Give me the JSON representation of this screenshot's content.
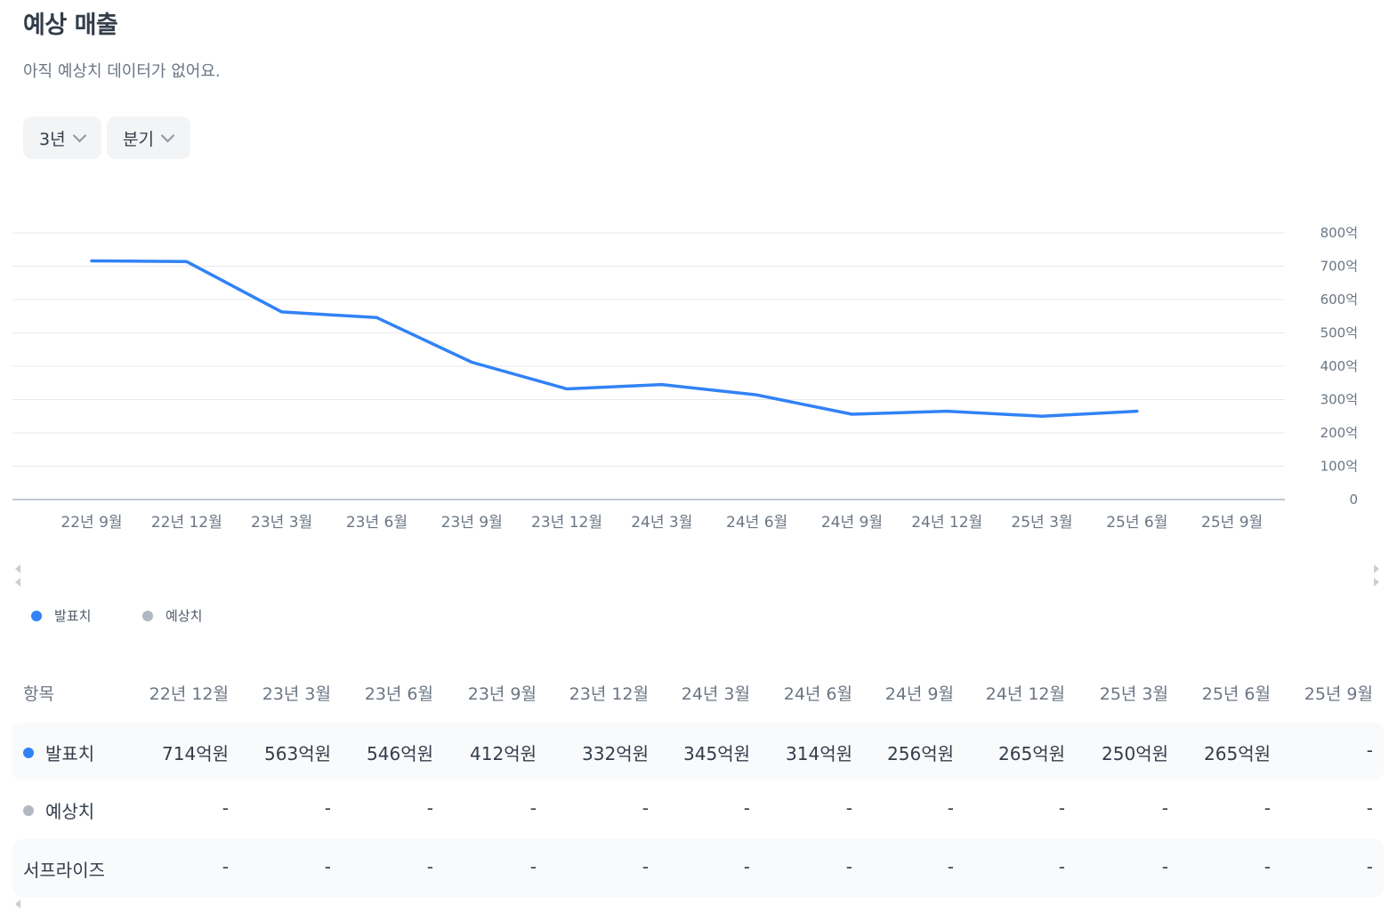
{
  "header": {
    "title": "예상 매출",
    "subtitle": "아직 예상치 데이터가 없어요."
  },
  "filters": {
    "period": "3년",
    "unit": "분기"
  },
  "colors": {
    "actual": "#3182f6",
    "estimate": "#b0b8c1",
    "grid": "#e5e8eb"
  },
  "chart_data": {
    "type": "line",
    "categories": [
      "22년 9월",
      "22년 12월",
      "23년 3월",
      "23년 6월",
      "23년 9월",
      "23년 12월",
      "24년 3월",
      "24년 6월",
      "24년 9월",
      "24년 12월",
      "25년 3월",
      "25년 6월",
      "25년 9월"
    ],
    "series": [
      {
        "name": "발표치",
        "values": [
          716,
          714,
          563,
          546,
          412,
          332,
          345,
          314,
          256,
          265,
          250,
          265,
          null
        ]
      },
      {
        "name": "예상치",
        "values": [
          null,
          null,
          null,
          null,
          null,
          null,
          null,
          null,
          null,
          null,
          null,
          null,
          null
        ]
      }
    ],
    "yticks": [
      "0",
      "100억",
      "200억",
      "300억",
      "400억",
      "500억",
      "600억",
      "700억",
      "800억"
    ],
    "ylim": [
      0,
      800
    ],
    "grid": true,
    "legend_position": "bottom-left"
  },
  "legend": [
    {
      "label": "발표치",
      "color": "#3182f6"
    },
    {
      "label": "예상치",
      "color": "#b0b8c1"
    }
  ],
  "table": {
    "header_label": "항목",
    "columns": [
      "22년 12월",
      "23년 3월",
      "23년 6월",
      "23년 9월",
      "23년 12월",
      "24년 3월",
      "24년 6월",
      "24년 9월",
      "24년 12월",
      "25년 3월",
      "25년 6월",
      "25년 9월"
    ],
    "rows": [
      {
        "label": "발표치",
        "dot": "#3182f6",
        "values": [
          "714억원",
          "563억원",
          "546억원",
          "412억원",
          "332억원",
          "345억원",
          "314억원",
          "256억원",
          "265억원",
          "250억원",
          "265억원",
          "-"
        ]
      },
      {
        "label": "예상치",
        "dot": "#b0b8c1",
        "values": [
          "-",
          "-",
          "-",
          "-",
          "-",
          "-",
          "-",
          "-",
          "-",
          "-",
          "-",
          "-"
        ]
      },
      {
        "label": "서프라이즈",
        "dot": null,
        "values": [
          "-",
          "-",
          "-",
          "-",
          "-",
          "-",
          "-",
          "-",
          "-",
          "-",
          "-",
          "-"
        ]
      }
    ]
  }
}
